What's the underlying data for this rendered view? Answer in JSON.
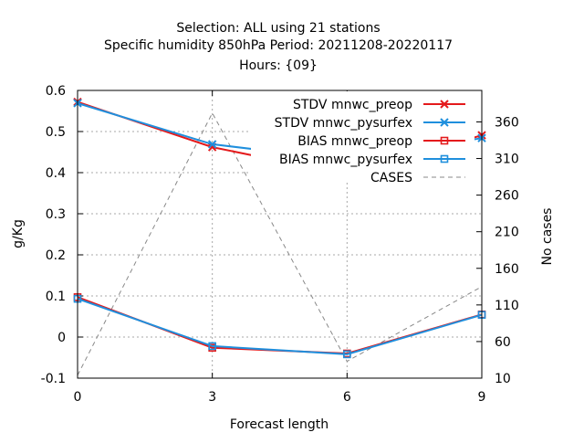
{
  "chart_data": {
    "type": "line",
    "title_lines": [
      "Selection: ALL using    21 stations",
      "Specific humidity 850hPa   Period: 20211208-20220117",
      "Hours: {09}"
    ],
    "xlabel": "Forecast length",
    "ylabel": "g/Kg",
    "y2label": "No cases",
    "x_ticks": [
      0,
      3,
      6,
      9
    ],
    "xlim": [
      0,
      9
    ],
    "y_ticks": [
      -0.1,
      0,
      0.1,
      0.2,
      0.3,
      0.4,
      0.5,
      0.6
    ],
    "ylim": [
      -0.1,
      0.6
    ],
    "y2_ticks": [
      10,
      60,
      110,
      160,
      210,
      260,
      310,
      360
    ],
    "y2lim": [
      10,
      403
    ],
    "grid": true,
    "legend_position": "top-right",
    "series": [
      {
        "name": "STDV mnwc_preop",
        "axis": "y1",
        "color": "#e41a1c",
        "marker": "x",
        "dash": "",
        "x": [
          0,
          3,
          6,
          9
        ],
        "y": [
          0.572,
          0.462,
          0.395,
          0.491
        ]
      },
      {
        "name": "STDV mnwc_pysurfex",
        "axis": "y1",
        "color": "#1f8fdd",
        "marker": "x",
        "dash": "",
        "x": [
          0,
          3,
          6,
          9
        ],
        "y": [
          0.569,
          0.469,
          0.43,
          0.484
        ]
      },
      {
        "name": "BIAS mnwc_preop",
        "axis": "y1",
        "color": "#e41a1c",
        "marker": "square",
        "dash": "",
        "x": [
          0,
          3,
          6,
          9
        ],
        "y": [
          0.097,
          -0.026,
          -0.04,
          0.055
        ]
      },
      {
        "name": "BIAS mnwc_pysurfex",
        "axis": "y1",
        "color": "#1f8fdd",
        "marker": "square",
        "dash": "",
        "x": [
          0,
          3,
          6,
          9
        ],
        "y": [
          0.093,
          -0.022,
          -0.042,
          0.054
        ]
      },
      {
        "name": "CASES",
        "axis": "y2",
        "color": "#888888",
        "marker": "none",
        "dash": "5,4",
        "x": [
          0,
          3,
          6,
          9
        ],
        "y": [
          14,
          372,
          33,
          135
        ]
      }
    ]
  }
}
